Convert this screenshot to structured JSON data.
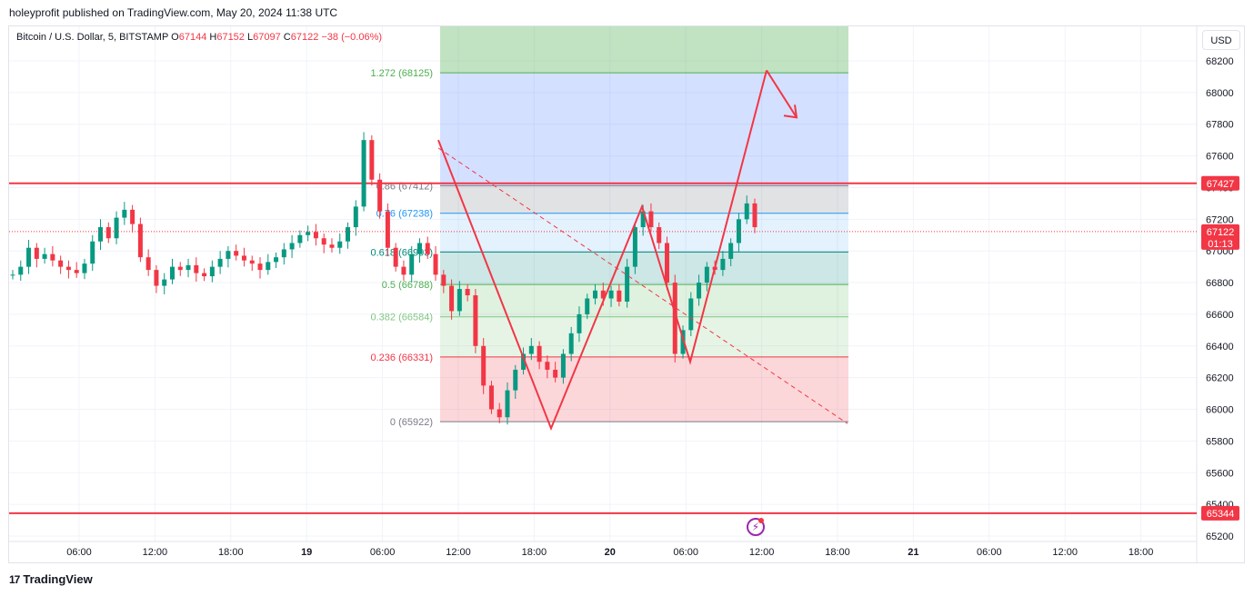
{
  "header": {
    "published": "holeyprofit published on TradingView.com, May 20, 2024 11:38 UTC"
  },
  "legend": {
    "symbol": "Bitcoin / U.S. Dollar, 5, BITSTAMP",
    "o_label": "O",
    "o_value": "67144",
    "h_label": "H",
    "h_value": "67152",
    "l_label": "L",
    "l_value": "67097",
    "c_label": "C",
    "c_value": "67122",
    "change": "−38 (−0.06%)"
  },
  "currency_button": "USD",
  "footer": {
    "brand": "TradingView",
    "logo_text": "17"
  },
  "colors": {
    "down": "#f23645",
    "up": "#089981",
    "line_red": "#f23645",
    "grid": "#f0f3fa",
    "axis_text": "#131722"
  },
  "chart_data": {
    "type": "candlestick",
    "symbol": "Bitcoin / U.S. Dollar",
    "interval": "5",
    "exchange": "BITSTAMP",
    "ylim": [
      65200,
      68300
    ],
    "y_ticks": [
      "68200",
      "68000",
      "67800",
      "67600",
      "67400",
      "67200",
      "67000",
      "66800",
      "66600",
      "66400",
      "66200",
      "66000",
      "65800",
      "65600",
      "65400",
      "65200"
    ],
    "x_ticks": [
      "06:00",
      "12:00",
      "18:00",
      "19",
      "06:00",
      "12:00",
      "18:00",
      "20",
      "06:00",
      "12:00",
      "18:00",
      "21",
      "06:00",
      "12:00",
      "18:00"
    ],
    "last_price": "67122",
    "countdown": "01:13",
    "horizontal_levels": [
      {
        "value": 67427,
        "label": "67427"
      },
      {
        "value": 65344,
        "label": "65344"
      }
    ],
    "fib_levels": [
      {
        "ratio": "1.272",
        "price": "68125",
        "value": 68125,
        "color": "#4caf50"
      },
      {
        "ratio": "0.86",
        "price": "67412",
        "value": 67412,
        "color": "#787b86"
      },
      {
        "ratio": "0.76",
        "price": "67238",
        "value": 67238,
        "color": "#2196f3"
      },
      {
        "ratio": "0.618",
        "price": "66993",
        "value": 66993,
        "color": "#00897b"
      },
      {
        "ratio": "0.5",
        "price": "66788",
        "value": 66788,
        "color": "#4caf50"
      },
      {
        "ratio": "0.382",
        "price": "66584",
        "value": 66584,
        "color": "#81c784"
      },
      {
        "ratio": "0.236",
        "price": "66331",
        "value": 66331,
        "color": "#f23645"
      },
      {
        "ratio": "0",
        "price": "65922",
        "value": 65922,
        "color": "#787b86"
      }
    ],
    "zigzag": [
      67700,
      65880,
      67280,
      66300,
      68140,
      67900
    ],
    "trendline": [
      67650,
      65910
    ],
    "close_series": [
      66850,
      66900,
      67020,
      66950,
      66980,
      66940,
      66900,
      66880,
      66860,
      66920,
      67060,
      67150,
      67080,
      67210,
      67260,
      67170,
      66960,
      66880,
      66780,
      66820,
      66900,
      66880,
      66910,
      66860,
      66840,
      66900,
      66950,
      67000,
      66970,
      66940,
      66920,
      66880,
      66930,
      66960,
      67010,
      67050,
      67100,
      67120,
      67080,
      67040,
      67020,
      67060,
      67150,
      67280,
      67700,
      67450,
      67250,
      67020,
      66900,
      66850,
      66980,
      67050,
      66980,
      66850,
      66780,
      66620,
      66760,
      66720,
      66400,
      66150,
      66000,
      65950,
      66120,
      66250,
      66350,
      66400,
      66300,
      66250,
      66200,
      66350,
      66480,
      66600,
      66700,
      66750,
      66700,
      66750,
      66680,
      66900,
      67150,
      67250,
      67150,
      67050,
      66800,
      66350,
      66500,
      66700,
      66800,
      66900,
      66880,
      66950,
      67050,
      67200,
      67300,
      67150
    ]
  }
}
